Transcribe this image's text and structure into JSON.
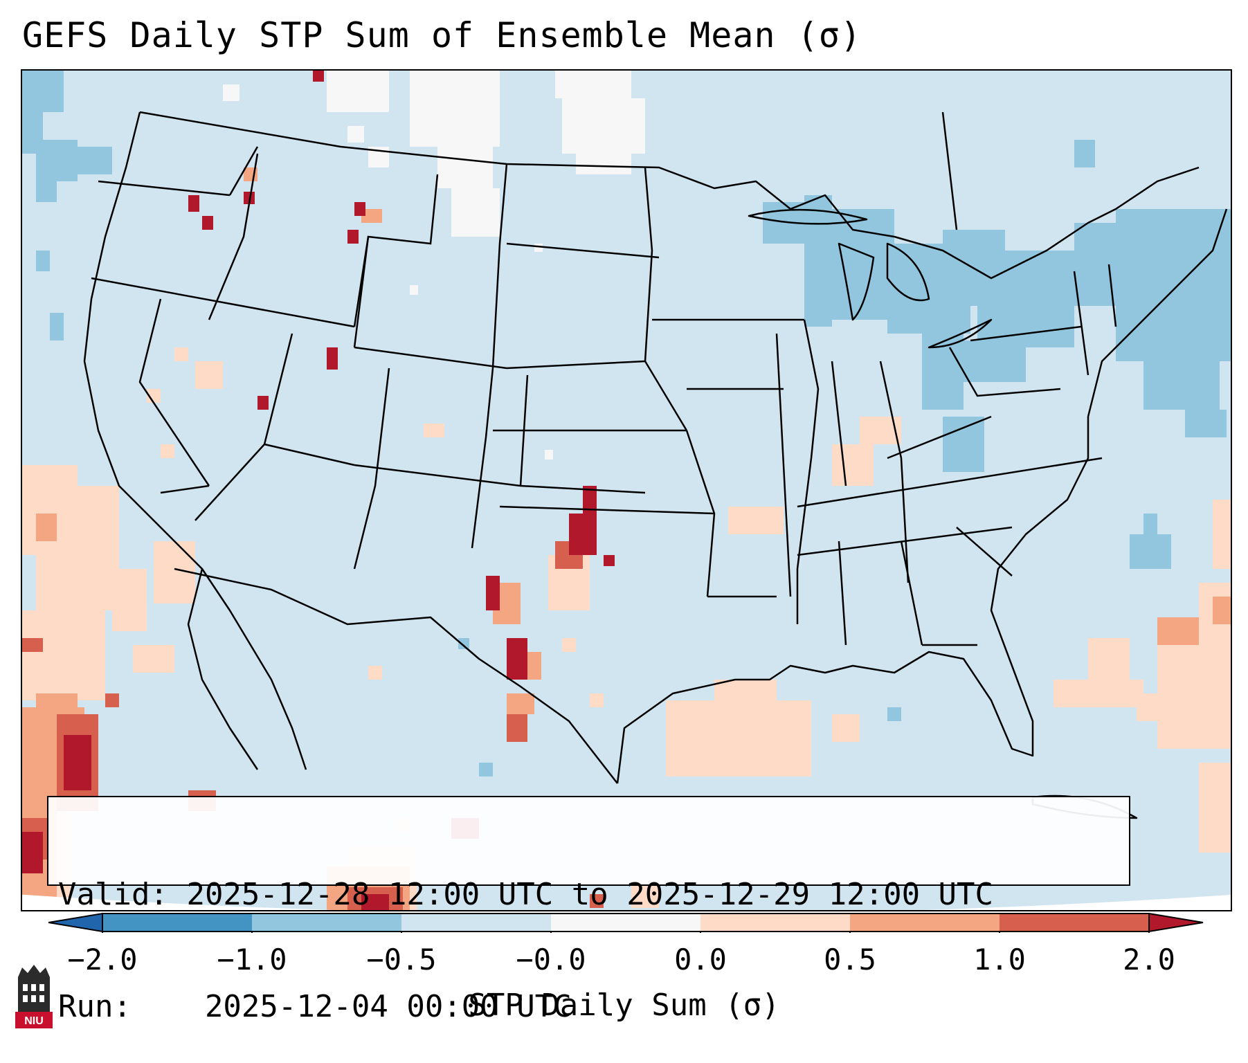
{
  "title": "GEFS Daily STP Sum of Ensemble Mean (σ)",
  "info": {
    "valid_label": "Valid:",
    "valid_value": "2025-12-28 12:00 UTC to 2025-12-29 12:00 UTC",
    "run_label": "Run:",
    "run_value": "2025-12-04 00:00 UTC"
  },
  "colorbar": {
    "label": "STP Daily Sum (σ)",
    "ticks": [
      "−2.0",
      "−1.0",
      "−0.5",
      "−0.0",
      "0.0",
      "0.5",
      "1.0",
      "2.0"
    ],
    "bins": [
      {
        "range": "-2.0 to -1.0",
        "color": "#4393c3"
      },
      {
        "range": "-1.0 to -0.5",
        "color": "#92c5de"
      },
      {
        "range": "-0.5 to -0.0",
        "color": "#d1e5f0"
      },
      {
        "range": "-0.0 to 0.0",
        "color": "#f7f7f7"
      },
      {
        "range": "0.0 to 0.5",
        "color": "#fddbc7"
      },
      {
        "range": "0.5 to 1.0",
        "color": "#f4a582"
      },
      {
        "range": "1.0 to 2.0",
        "color": "#d6604d"
      },
      {
        "range": "> 2.0",
        "color": "#b2182b"
      },
      {
        "range": "< -2.0",
        "color": "#2166ac"
      }
    ]
  },
  "map": {
    "background_color": "#d1e5f0",
    "border_color": "#000000",
    "region": "Contiguous United States"
  },
  "logo": {
    "text": "NIU",
    "icon": "niu-tower-logo-icon"
  }
}
